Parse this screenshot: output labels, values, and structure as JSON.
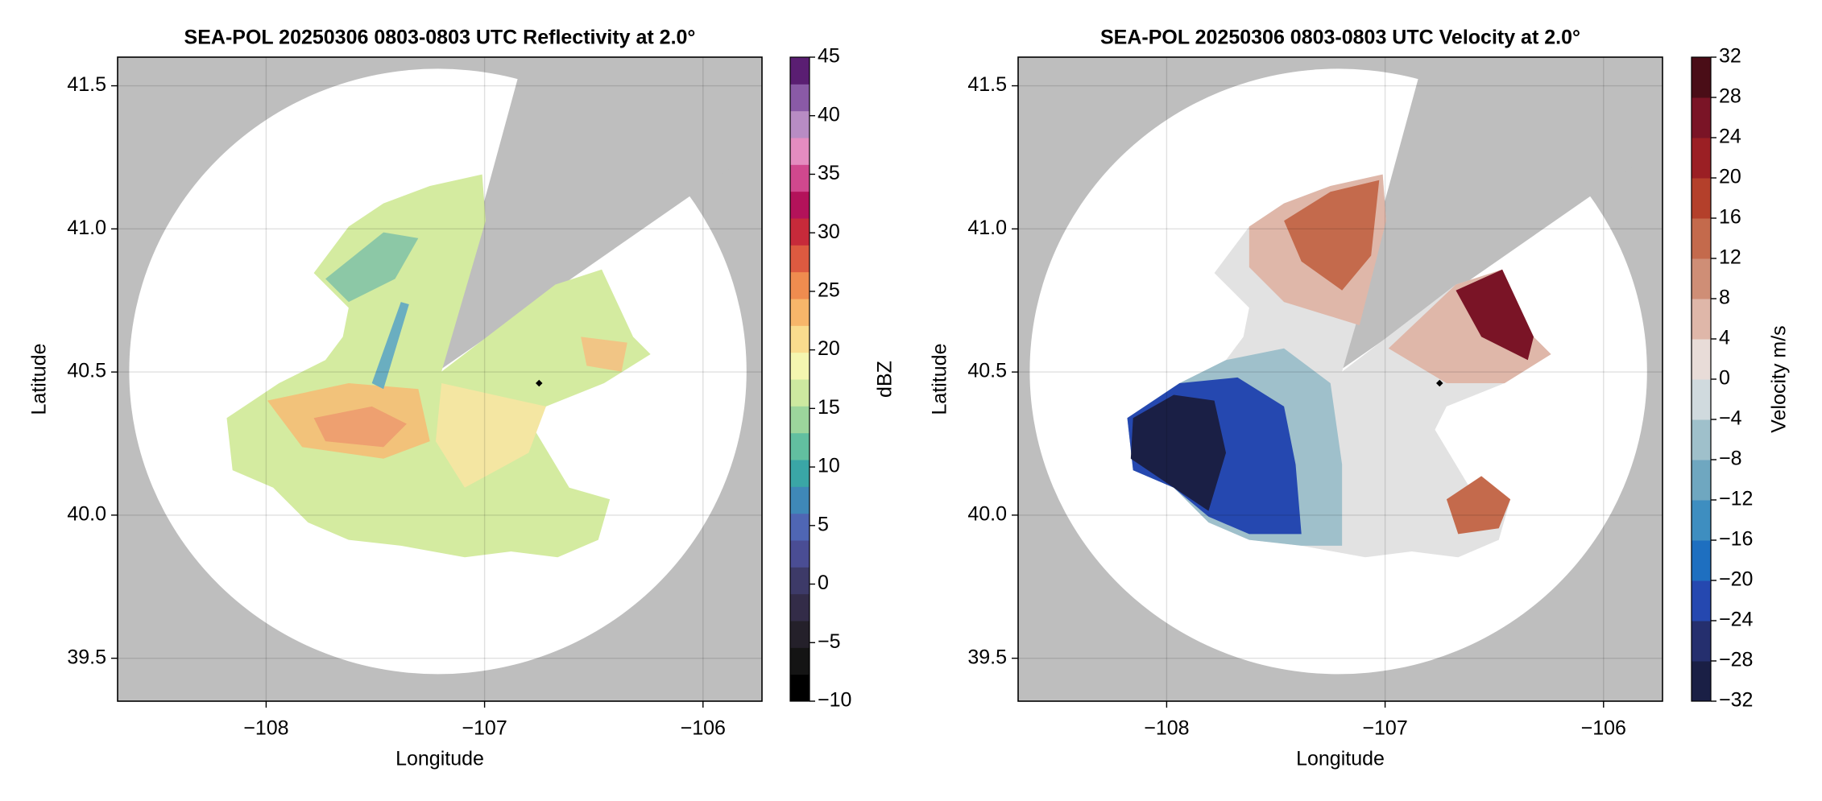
{
  "chart_data": [
    {
      "type": "radar-ppi",
      "title": "SEA-POL 20250306 0803-0803 UTC Reflectivity at 2.0°",
      "xlabel": "Longitude",
      "ylabel": "Latitude",
      "xlim": [
        -108.68,
        -105.73
      ],
      "ylim": [
        39.35,
        41.6
      ],
      "xticks": [
        {
          "value": -108,
          "label": "−108"
        },
        {
          "value": -107,
          "label": "−107"
        },
        {
          "value": -106,
          "label": "−106"
        }
      ],
      "yticks": [
        39.5,
        {
          "value": 40,
          "label": "40.0"
        },
        40.5,
        {
          "value": 41,
          "label": "41.0"
        },
        41.5
      ],
      "grid": true,
      "colorbar": {
        "label": "dBZ",
        "lim": [
          -10,
          45
        ],
        "ticks": [
          {
            "value": -10,
            "label": "−10"
          },
          {
            "value": -5,
            "label": "−5"
          },
          0,
          5,
          10,
          15,
          20,
          25,
          30,
          35,
          40,
          45
        ],
        "colors": [
          "#000000",
          "#141414",
          "#24202a",
          "#332c48",
          "#3d3a68",
          "#4a4d94",
          "#4f66b4",
          "#3f88b8",
          "#3aa6a6",
          "#62bfa0",
          "#9cd59c",
          "#cde9a0",
          "#f4f6b0",
          "#f9dc8e",
          "#f7b66a",
          "#ef8c4f",
          "#dd5a40",
          "#c72a3a",
          "#b3125a",
          "#d0488e",
          "#e48cc0",
          "#b88cc4",
          "#8a5aa6",
          "#5a1e72"
        ]
      }
    },
    {
      "type": "radar-ppi",
      "title": "SEA-POL 20250306 0803-0803 UTC Velocity at 2.0°",
      "xlabel": "Longitude",
      "ylabel": "Latitude",
      "xlim": [
        -108.68,
        -105.73
      ],
      "ylim": [
        39.35,
        41.6
      ],
      "xticks": [
        {
          "value": -108,
          "label": "−108"
        },
        {
          "value": -107,
          "label": "−107"
        },
        {
          "value": -106,
          "label": "−106"
        }
      ],
      "yticks": [
        39.5,
        {
          "value": 40,
          "label": "40.0"
        },
        40.5,
        {
          "value": 41,
          "label": "41.0"
        },
        41.5
      ],
      "grid": true,
      "colorbar": {
        "label": "Velocity m/s",
        "lim": [
          -32,
          32
        ],
        "ticks": [
          {
            "value": -32,
            "label": "−32"
          },
          {
            "value": -28,
            "label": "−28"
          },
          {
            "value": -24,
            "label": "−24"
          },
          {
            "value": -20,
            "label": "−20"
          },
          {
            "value": -16,
            "label": "−16"
          },
          {
            "value": -12,
            "label": "−12"
          },
          {
            "value": -8,
            "label": "−8"
          },
          {
            "value": -4,
            "label": "−4"
          },
          0,
          4,
          8,
          12,
          16,
          20,
          24,
          28,
          32
        ],
        "colors": [
          "#1a1f45",
          "#252f6e",
          "#2548b0",
          "#1e6fc0",
          "#3e8ec0",
          "#6fa7c0",
          "#9fc0cb",
          "#d0dade",
          "#e8dcd8",
          "#dfb7a9",
          "#cf8e76",
          "#c46a4c",
          "#b4402b",
          "#9b1f24",
          "#7a1426",
          "#4a0d17"
        ]
      }
    }
  ]
}
